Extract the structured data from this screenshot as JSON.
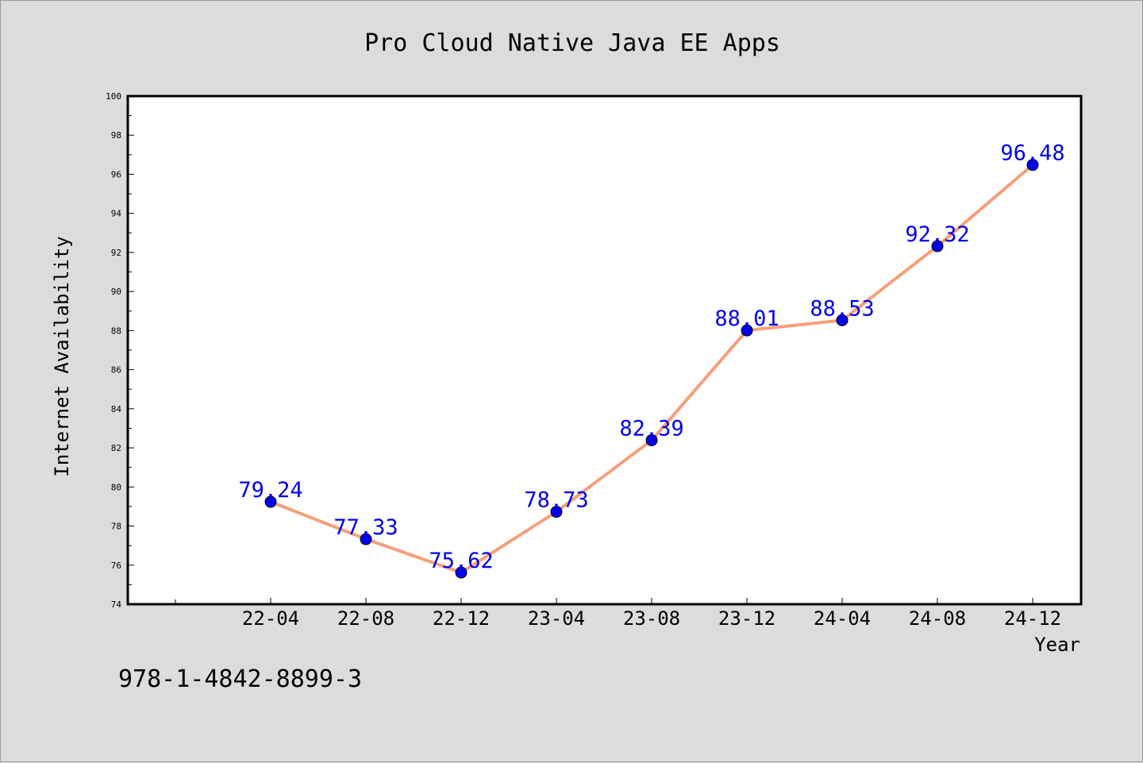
{
  "chart_data": {
    "type": "line",
    "title": "Pro Cloud Native Java EE Apps",
    "xlabel": "Year",
    "ylabel": "Internet Availability",
    "annotation": "978-1-4842-8899-3",
    "categories": [
      "22-04",
      "22-08",
      "22-12",
      "23-04",
      "23-08",
      "23-12",
      "24-04",
      "24-08",
      "24-12"
    ],
    "series": [
      {
        "values": [
          79.24,
          77.33,
          75.62,
          78.73,
          82.39,
          88.01,
          88.53,
          92.32,
          96.48
        ],
        "data_labels": [
          "79.24",
          "77.33",
          "75.62",
          "78.73",
          "82.39",
          "88.01",
          "88.53",
          "92.32",
          "96.48"
        ],
        "line_color": "#f4a07a",
        "marker_color": "#0000ee"
      }
    ],
    "ylim": [
      74,
      100
    ],
    "yticks": [
      "74",
      "76",
      "78",
      "80",
      "82",
      "84",
      "86",
      "88",
      "90",
      "92",
      "94",
      "96",
      "98",
      "100"
    ],
    "grid": false,
    "legend": false,
    "colors": {
      "background": "#dcdcdc",
      "plot_area": "#ffffff",
      "label_color": "#0000ee"
    }
  }
}
